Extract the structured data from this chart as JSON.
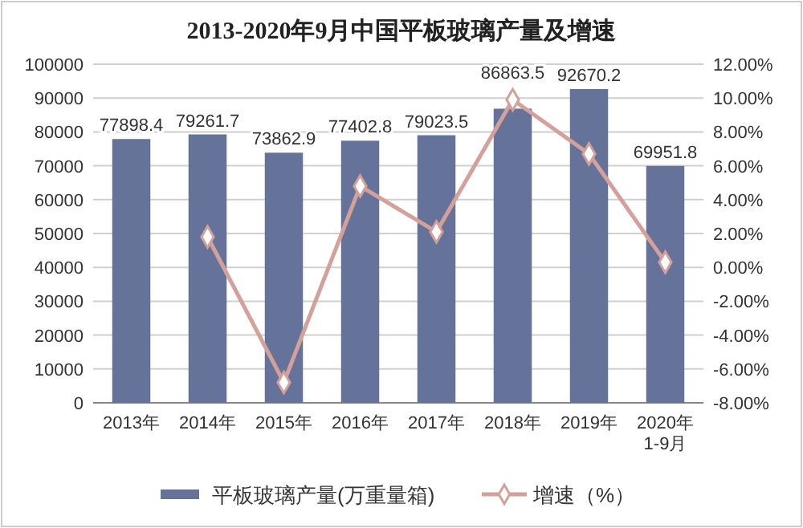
{
  "chart_data": {
    "type": "bar",
    "title": "2013-2020年9月中国平板玻璃产量及增速",
    "categories": [
      "2013年",
      "2014年",
      "2015年",
      "2016年",
      "2017年",
      "2018年",
      "2019年",
      "2020年\n1-9月"
    ],
    "series": [
      {
        "name": "平板玻璃产量(万重量箱)",
        "color": "#65739a",
        "values": [
          77898.4,
          79261.7,
          73862.9,
          77402.8,
          79023.5,
          86863.5,
          92670.2,
          69951.8
        ],
        "data_labels": true
      },
      {
        "name": "增速（%）",
        "type": "line",
        "axis": "y2",
        "color": "#d4a09a",
        "marker": "diamond",
        "values": [
          null,
          1.8,
          -6.8,
          4.8,
          2.1,
          9.9,
          6.7,
          0.3
        ]
      }
    ],
    "ylim": [
      0,
      100000
    ],
    "yticks": [
      0,
      10000,
      20000,
      30000,
      40000,
      50000,
      60000,
      70000,
      80000,
      90000,
      100000
    ],
    "y2lim": [
      -8,
      12
    ],
    "y2ticks": [
      {
        "value": -8,
        "label": "-8.00%"
      },
      {
        "value": -6,
        "label": "-6.00%"
      },
      {
        "value": -4,
        "label": "-4.00%"
      },
      {
        "value": -2,
        "label": "-2.00%"
      },
      {
        "value": 0,
        "label": "0.00%"
      },
      {
        "value": 2,
        "label": "2.00%"
      },
      {
        "value": 4,
        "label": "4.00%"
      },
      {
        "value": 6,
        "label": "6.00%"
      },
      {
        "value": 8,
        "label": "8.00%"
      },
      {
        "value": 10,
        "label": "10.00%"
      },
      {
        "value": 12,
        "label": "12.00%"
      }
    ],
    "grid": "y",
    "legend": "bottom"
  }
}
